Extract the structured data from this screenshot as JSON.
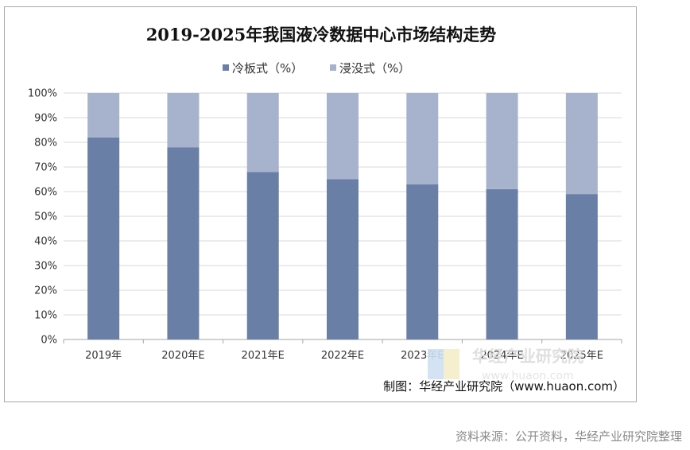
{
  "colors": {
    "cold_plate": "#6a7fa6",
    "immersion": "#a7b3cd",
    "grid": "#d9d9d9",
    "axis": "#a6a6a6"
  },
  "chart_data": {
    "type": "bar",
    "stacked": true,
    "percent": true,
    "title": "2019-2025年我国液冷数据中心市场结构走势",
    "categories": [
      "2019年",
      "2020年E",
      "2021年E",
      "2022年E",
      "2023年E",
      "2024年E",
      "2025年E"
    ],
    "series": [
      {
        "name": "冷板式（%）",
        "values": [
          82,
          78,
          68,
          65,
          63,
          61,
          59
        ]
      },
      {
        "name": "浸没式（%）",
        "values": [
          18,
          22,
          32,
          35,
          37,
          39,
          41
        ]
      }
    ],
    "ylim": [
      0,
      100
    ],
    "yticks": [
      "0%",
      "10%",
      "20%",
      "30%",
      "40%",
      "50%",
      "60%",
      "70%",
      "80%",
      "90%",
      "100%"
    ],
    "xlabel": "",
    "ylabel": "",
    "legend": "top-center",
    "grid": true
  },
  "credit": "制图：华经产业研究院（www.huaon.com）",
  "watermark": {
    "name": "华经产业研究院",
    "url": "www.huaon.com"
  },
  "source": "资料来源：公开资料，华经产业研究院整理"
}
